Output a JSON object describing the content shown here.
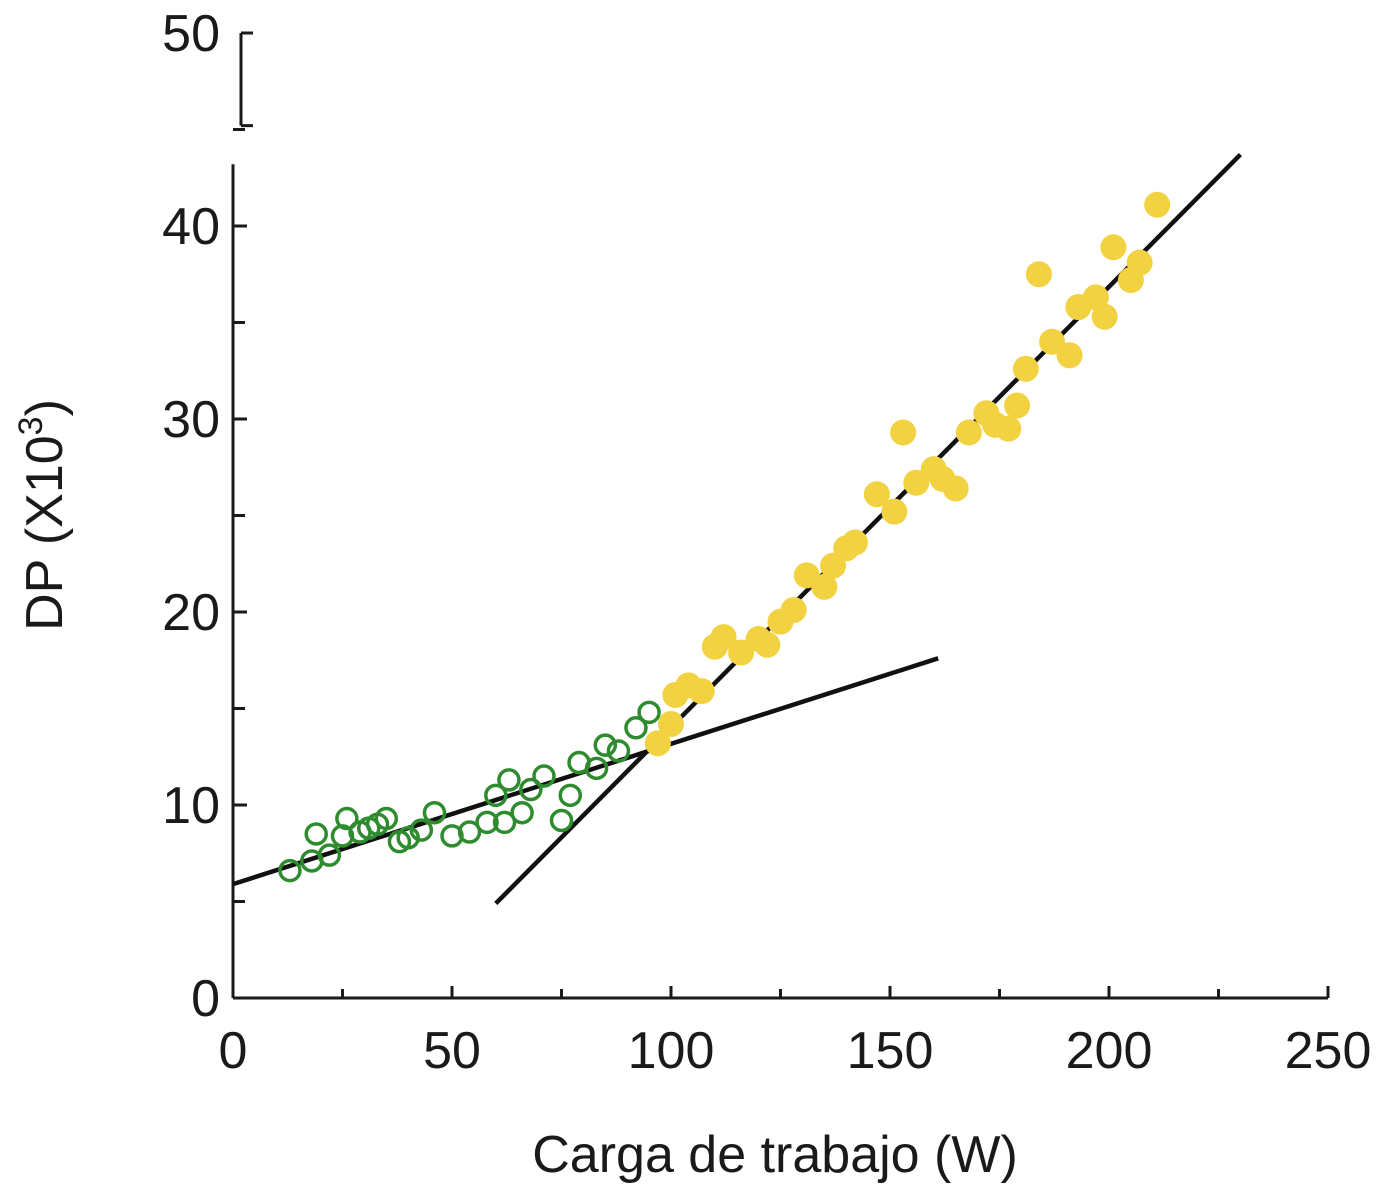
{
  "chart_data": {
    "type": "scatter",
    "title": "",
    "xlabel": "Carga de trabajo (W)",
    "ylabel": "DP (X10",
    "ylabel_sup": "3",
    "ylabel_close": ")",
    "xlim": [
      0,
      250
    ],
    "ylim": [
      0,
      50
    ],
    "x_ticks": [
      0,
      50,
      100,
      150,
      200,
      250
    ],
    "y_ticks": [
      0,
      10,
      20,
      30,
      40,
      50
    ],
    "x_minor_step": 25,
    "y_minor_step": 5,
    "y_axis_break": true,
    "grid": false,
    "colors": {
      "open": "#2e8b2e",
      "filled": "#f2d240",
      "line": "#111111",
      "axis": "#1a1a1a"
    },
    "series": [
      {
        "marker": "open-circle",
        "points": [
          [
            13,
            6.6
          ],
          [
            18,
            7.1
          ],
          [
            19,
            8.5
          ],
          [
            22,
            7.4
          ],
          [
            25,
            8.4
          ],
          [
            26,
            9.3
          ],
          [
            29,
            8.6
          ],
          [
            31,
            8.8
          ],
          [
            33,
            9.0
          ],
          [
            35,
            9.3
          ],
          [
            38,
            8.1
          ],
          [
            40,
            8.3
          ],
          [
            43,
            8.7
          ],
          [
            46,
            9.6
          ],
          [
            50,
            8.4
          ],
          [
            54,
            8.6
          ],
          [
            58,
            9.1
          ],
          [
            60,
            10.5
          ],
          [
            62,
            9.1
          ],
          [
            63,
            11.3
          ],
          [
            66,
            9.6
          ],
          [
            68,
            10.8
          ],
          [
            71,
            11.5
          ],
          [
            75,
            9.2
          ],
          [
            77,
            10.5
          ],
          [
            79,
            12.2
          ],
          [
            83,
            11.9
          ],
          [
            85,
            13.1
          ],
          [
            88,
            12.8
          ],
          [
            92,
            14.0
          ],
          [
            95,
            14.8
          ]
        ]
      },
      {
        "marker": "filled-circle",
        "points": [
          [
            97,
            13.2
          ],
          [
            100,
            14.2
          ],
          [
            101,
            15.7
          ],
          [
            104,
            16.2
          ],
          [
            107,
            15.9
          ],
          [
            110,
            18.2
          ],
          [
            112,
            18.7
          ],
          [
            116,
            17.9
          ],
          [
            120,
            18.6
          ],
          [
            122,
            18.3
          ],
          [
            125,
            19.5
          ],
          [
            128,
            20.1
          ],
          [
            131,
            21.9
          ],
          [
            135,
            21.3
          ],
          [
            137,
            22.4
          ],
          [
            140,
            23.3
          ],
          [
            142,
            23.6
          ],
          [
            147,
            26.1
          ],
          [
            151,
            25.2
          ],
          [
            153,
            29.3
          ],
          [
            156,
            26.7
          ],
          [
            160,
            27.4
          ],
          [
            162,
            26.9
          ],
          [
            165,
            26.4
          ],
          [
            168,
            29.3
          ],
          [
            172,
            30.3
          ],
          [
            174,
            29.7
          ],
          [
            177,
            29.5
          ],
          [
            179,
            30.7
          ],
          [
            181,
            32.6
          ],
          [
            184,
            37.5
          ],
          [
            187,
            34.0
          ],
          [
            191,
            33.3
          ],
          [
            193,
            35.8
          ],
          [
            197,
            36.3
          ],
          [
            199,
            35.3
          ],
          [
            201,
            38.9
          ],
          [
            205,
            37.2
          ],
          [
            207,
            38.1
          ],
          [
            211,
            41.1
          ]
        ]
      }
    ],
    "fit_lines": [
      {
        "x": [
          0,
          161
        ],
        "y": [
          5.9,
          17.6
        ]
      },
      {
        "x": [
          60,
          230
        ],
        "y": [
          4.9,
          43.7
        ]
      }
    ]
  }
}
